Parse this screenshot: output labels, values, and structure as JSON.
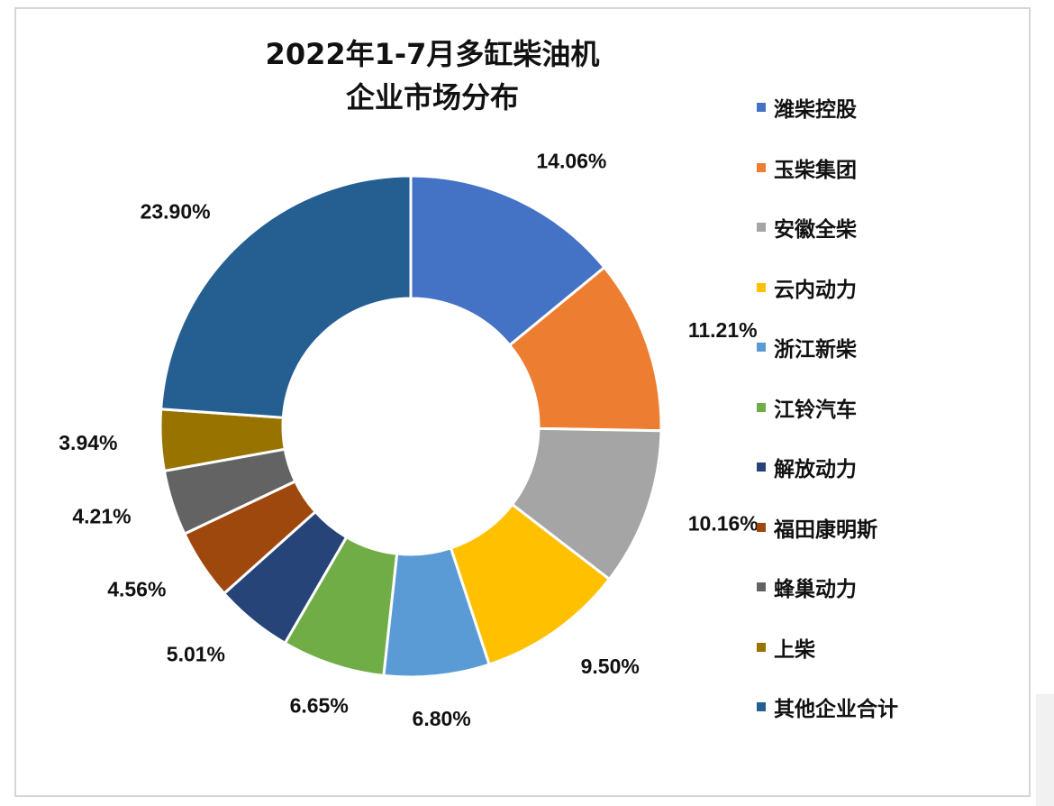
{
  "chart_data": {
    "type": "pie",
    "donut": true,
    "title_lines": [
      "2022年1-7月多缸柴油机",
      "企业市场分布"
    ],
    "categories": [
      "潍柴控股",
      "玉柴集团",
      "安徽全柴",
      "云内动力",
      "浙江新柴",
      "江铃汽车",
      "解放动力",
      "福田康明斯",
      "蜂巢动力",
      "上柴",
      "其他企业合计"
    ],
    "values": [
      14.06,
      11.21,
      10.16,
      9.5,
      6.8,
      6.65,
      5.01,
      4.56,
      4.21,
      3.94,
      23.9
    ],
    "labels": [
      "14.06%",
      "11.21%",
      "10.16%",
      "9.50%",
      "6.80%",
      "6.65%",
      "5.01%",
      "4.56%",
      "4.21%",
      "3.94%",
      "23.90%"
    ],
    "colors": [
      "#4472C4",
      "#ED7D31",
      "#A5A5A5",
      "#FFC000",
      "#5B9BD5",
      "#70AD47",
      "#264478",
      "#9E480E",
      "#636363",
      "#997300",
      "#255E91"
    ],
    "legend_position": "right"
  }
}
